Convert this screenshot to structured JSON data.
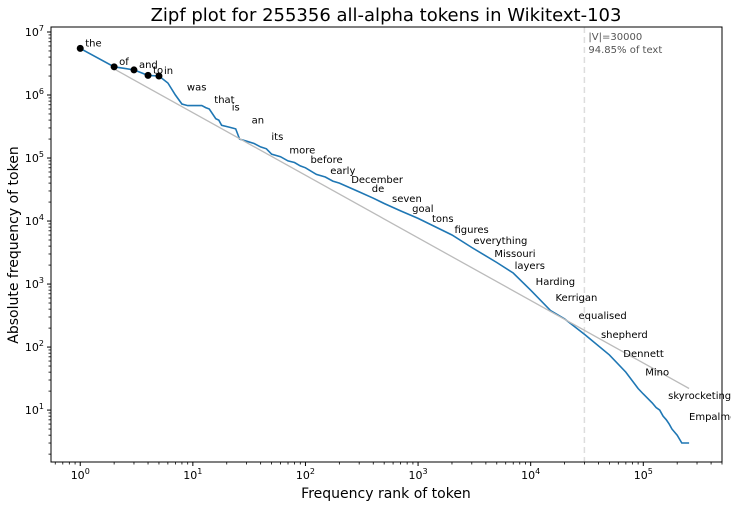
{
  "chart_data": {
    "type": "line",
    "title": "Zipf plot for 255356 all-alpha tokens in Wikitext-103",
    "xlabel": "Frequency rank of token",
    "ylabel": "Absolute frequency of token",
    "x_scale": "log",
    "y_scale": "log",
    "xlim": [
      0.55,
      500000
    ],
    "ylim": [
      1.5,
      12000000
    ],
    "x_ticks": [
      {
        "value": 1,
        "label": "10",
        "exp": "0"
      },
      {
        "value": 10,
        "label": "10",
        "exp": "1"
      },
      {
        "value": 100,
        "label": "10",
        "exp": "2"
      },
      {
        "value": 1000,
        "label": "10",
        "exp": "3"
      },
      {
        "value": 10000,
        "label": "10",
        "exp": "4"
      },
      {
        "value": 100000,
        "label": "10",
        "exp": "5"
      }
    ],
    "y_ticks": [
      {
        "value": 10,
        "label": "10",
        "exp": "1"
      },
      {
        "value": 100,
        "label": "10",
        "exp": "2"
      },
      {
        "value": 1000,
        "label": "10",
        "exp": "3"
      },
      {
        "value": 10000,
        "label": "10",
        "exp": "4"
      },
      {
        "value": 100000,
        "label": "10",
        "exp": "5"
      },
      {
        "value": 1000000,
        "label": "10",
        "exp": "6"
      },
      {
        "value": 10000000,
        "label": "10",
        "exp": "7"
      }
    ],
    "grid": false,
    "vocab_cutoff": {
      "x": 30000,
      "label_line1": "|V|=30000",
      "label_line2": "94.85% of text",
      "color": "#dddddd"
    },
    "series": [
      {
        "color": "#1f77b4",
        "points": [
          [
            1,
            5500000
          ],
          [
            2,
            2800000
          ],
          [
            3,
            2500000
          ],
          [
            4,
            2050000
          ],
          [
            5,
            2000000
          ],
          [
            6,
            1550000
          ],
          [
            7,
            1000000
          ],
          [
            8,
            720000
          ],
          [
            9,
            680000
          ],
          [
            10,
            680000
          ],
          [
            12,
            680000
          ],
          [
            13,
            630000
          ],
          [
            14,
            600000
          ],
          [
            16,
            420000
          ],
          [
            17,
            400000
          ],
          [
            18,
            330000
          ],
          [
            21,
            310000
          ],
          [
            24,
            290000
          ],
          [
            26,
            200000
          ],
          [
            30,
            185000
          ],
          [
            35,
            170000
          ],
          [
            40,
            150000
          ],
          [
            45,
            140000
          ],
          [
            50,
            115000
          ],
          [
            60,
            105000
          ],
          [
            70,
            90000
          ],
          [
            80,
            85000
          ],
          [
            90,
            75000
          ],
          [
            100,
            70000
          ],
          [
            125,
            55000
          ],
          [
            150,
            50000
          ],
          [
            175,
            43000
          ],
          [
            200,
            40000
          ],
          [
            300,
            29000
          ],
          [
            400,
            23000
          ],
          [
            500,
            19000
          ],
          [
            700,
            14500
          ],
          [
            1000,
            11000
          ],
          [
            2000,
            6000
          ],
          [
            3000,
            3800
          ],
          [
            5000,
            2200
          ],
          [
            7000,
            1500
          ],
          [
            10000,
            800
          ],
          [
            15000,
            380
          ],
          [
            20000,
            280
          ],
          [
            30000,
            160
          ],
          [
            50000,
            75
          ],
          [
            70000,
            40
          ],
          [
            90000,
            22
          ],
          [
            100000,
            18
          ],
          [
            120000,
            13
          ],
          [
            130000,
            11
          ],
          [
            140000,
            10
          ],
          [
            150000,
            8
          ],
          [
            160000,
            7
          ],
          [
            170000,
            6
          ],
          [
            180000,
            5
          ],
          [
            200000,
            4
          ],
          [
            220000,
            3
          ],
          [
            255356,
            3
          ]
        ]
      },
      {
        "color": "#bbbbbb",
        "points": [
          [
            2,
            2600000
          ],
          [
            255356,
            22
          ]
        ]
      }
    ],
    "highlight_points": [
      {
        "rank": 1,
        "freq": 5500000
      },
      {
        "rank": 2,
        "freq": 2800000
      },
      {
        "rank": 3,
        "freq": 2500000
      },
      {
        "rank": 4,
        "freq": 2050000
      },
      {
        "rank": 5,
        "freq": 2000000
      }
    ],
    "word_labels": [
      {
        "word": "the",
        "rank": 1,
        "freq": 5500000
      },
      {
        "word": "of",
        "rank": 2,
        "freq": 2800000
      },
      {
        "word": "and",
        "rank": 3,
        "freq": 2500000
      },
      {
        "word": "to",
        "rank": 4,
        "freq": 2050000
      },
      {
        "word": "in",
        "rank": 5,
        "freq": 2000000
      },
      {
        "word": "was",
        "rank": 8,
        "freq": 1100000
      },
      {
        "word": "that",
        "rank": 14,
        "freq": 700000
      },
      {
        "word": "is",
        "rank": 20,
        "freq": 530000
      },
      {
        "word": "an",
        "rank": 30,
        "freq": 330000
      },
      {
        "word": "its",
        "rank": 45,
        "freq": 180000
      },
      {
        "word": "more",
        "rank": 65,
        "freq": 110000
      },
      {
        "word": "before",
        "rank": 100,
        "freq": 78000
      },
      {
        "word": "early",
        "rank": 150,
        "freq": 52000
      },
      {
        "word": "December",
        "rank": 230,
        "freq": 37000
      },
      {
        "word": "de",
        "rank": 350,
        "freq": 27000
      },
      {
        "word": "seven",
        "rank": 530,
        "freq": 18500
      },
      {
        "word": "goal",
        "rank": 800,
        "freq": 13000
      },
      {
        "word": "tons",
        "rank": 1200,
        "freq": 9000
      },
      {
        "word": "figures",
        "rank": 1900,
        "freq": 6000
      },
      {
        "word": "everything",
        "rank": 2800,
        "freq": 4000
      },
      {
        "word": "Missouri",
        "rank": 4300,
        "freq": 2500
      },
      {
        "word": "layers",
        "rank": 6500,
        "freq": 1600
      },
      {
        "word": "Harding",
        "rank": 10000,
        "freq": 900
      },
      {
        "word": "Kerrigan",
        "rank": 15000,
        "freq": 500
      },
      {
        "word": "equalised",
        "rank": 24000,
        "freq": 260
      },
      {
        "word": "shepherd",
        "rank": 38000,
        "freq": 130
      },
      {
        "word": "Dennett",
        "rank": 60000,
        "freq": 65
      },
      {
        "word": "Mino",
        "rank": 94000,
        "freq": 33
      },
      {
        "word": "skyrocketing",
        "rank": 150000,
        "freq": 14
      },
      {
        "word": "Empalme",
        "rank": 230000,
        "freq": 6.5
      }
    ]
  }
}
